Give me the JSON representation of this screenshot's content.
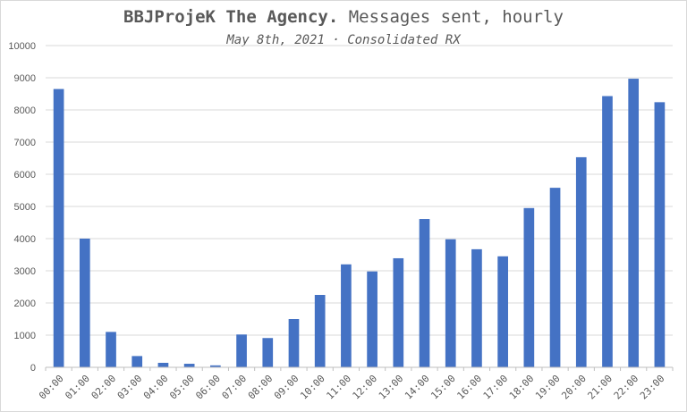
{
  "chart_data": {
    "type": "bar",
    "title_brand": "BBJProjeK The Agency.",
    "title_rest": " Messages sent, hourly",
    "subtitle": "May 8th, 2021 · Consolidated RX",
    "xlabel": "",
    "ylabel": "",
    "ylim": [
      0,
      10000
    ],
    "yticks": [
      0,
      1000,
      2000,
      3000,
      4000,
      5000,
      6000,
      7000,
      8000,
      9000,
      10000
    ],
    "categories": [
      "00:00",
      "01:00",
      "02:00",
      "03:00",
      "04:00",
      "05:00",
      "06:00",
      "07:00",
      "08:00",
      "09:00",
      "10:00",
      "11:00",
      "12:00",
      "13:00",
      "14:00",
      "15:00",
      "16:00",
      "17:00",
      "18:00",
      "19:00",
      "20:00",
      "21:00",
      "22:00",
      "23:00"
    ],
    "values": [
      8650,
      4000,
      1100,
      350,
      140,
      110,
      60,
      1020,
      910,
      1500,
      2250,
      3200,
      2980,
      3390,
      4610,
      3980,
      3670,
      3450,
      4950,
      5580,
      6530,
      8430,
      8970,
      8240
    ],
    "bar_color": "#4472c4",
    "grid": true,
    "legend": "none"
  }
}
